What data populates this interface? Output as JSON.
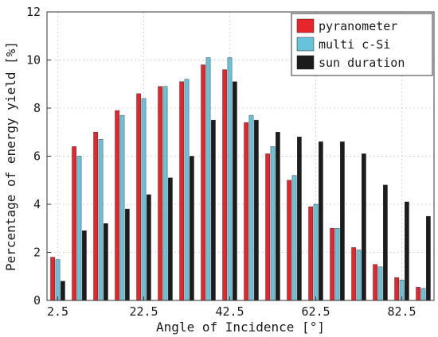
{
  "chart_data": {
    "type": "bar",
    "xlabel": "Angle of Incidence [°]",
    "ylabel": "Percentage of energy yield [%]",
    "ylim": [
      0,
      12
    ],
    "yticks": [
      "0",
      "2",
      "4",
      "6",
      "8",
      "10",
      "12"
    ],
    "xticks": [
      "2.5",
      "22.5",
      "42.5",
      "62.5",
      "82.5"
    ],
    "xtick_values": [
      2.5,
      22.5,
      42.5,
      62.5,
      82.5
    ],
    "x": [
      2.5,
      7.5,
      12.5,
      17.5,
      22.5,
      27.5,
      32.5,
      37.5,
      42.5,
      47.5,
      52.5,
      57.5,
      62.5,
      67.5,
      72.5,
      77.5,
      82.5,
      87.5
    ],
    "grid": true,
    "legend_position": "top-right",
    "series": [
      {
        "name": "pyranometer",
        "color": "#e8242c",
        "values": [
          1.8,
          6.4,
          7.0,
          7.9,
          8.6,
          8.9,
          9.1,
          9.8,
          9.6,
          7.4,
          6.1,
          5.0,
          3.9,
          3.0,
          2.2,
          1.5,
          0.95,
          0.55
        ]
      },
      {
        "name": "multi c-Si",
        "color": "#69c3d8",
        "values": [
          1.7,
          6.0,
          6.7,
          7.7,
          8.4,
          8.9,
          9.2,
          10.1,
          10.1,
          7.7,
          6.4,
          5.2,
          4.0,
          3.0,
          2.1,
          1.4,
          0.85,
          0.5
        ]
      },
      {
        "name": "sun duration",
        "color": "#1c1c1c",
        "values": [
          0.8,
          2.9,
          3.2,
          3.8,
          4.4,
          5.1,
          6.0,
          7.5,
          9.1,
          7.5,
          7.0,
          6.8,
          6.6,
          6.6,
          6.1,
          4.8,
          4.1,
          3.5
        ]
      }
    ]
  }
}
